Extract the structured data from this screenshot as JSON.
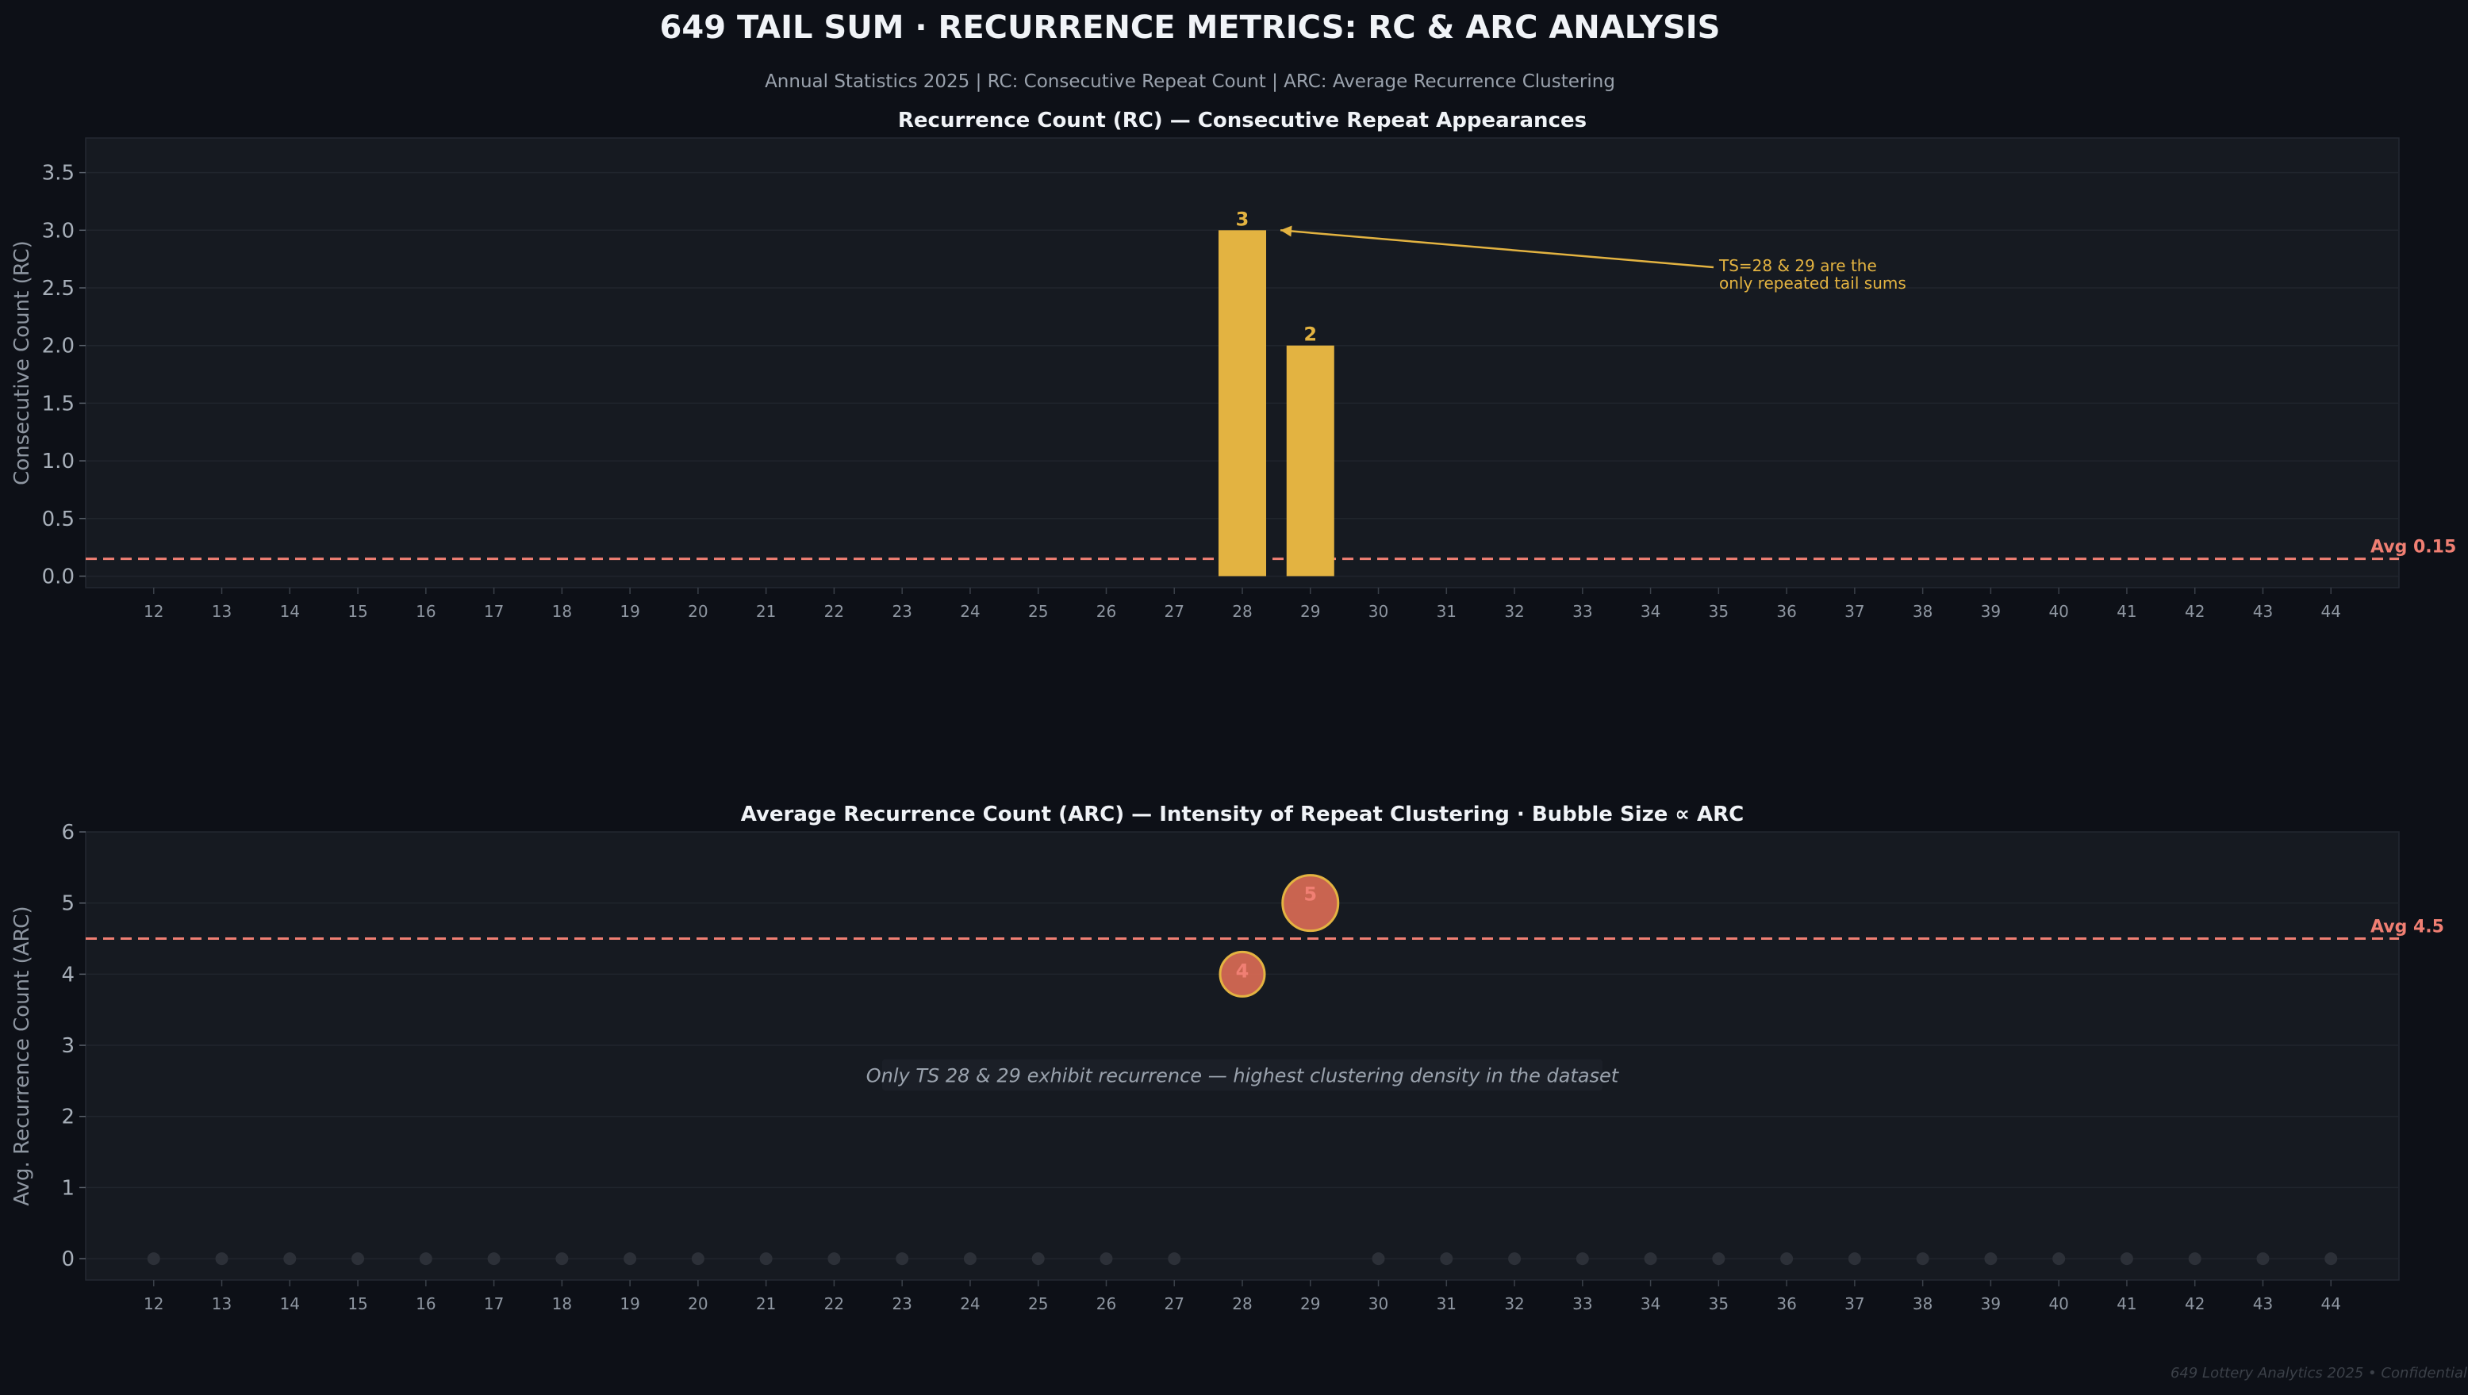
{
  "header": {
    "title": "649 TAIL SUM  ·  RECURRENCE METRICS: RC & ARC ANALYSIS",
    "subtitle": "Annual Statistics 2025  |  RC: Consecutive Repeat Count  |  ARC: Average Recurrence Clustering"
  },
  "footer": "649 Lottery Analytics 2025 • Confidential",
  "colors": {
    "background": "#0d1017",
    "panel": "#161a21",
    "bar": "#e3b341",
    "avg_line": "#f07f73",
    "bubble_fill": "#d96a55",
    "bubble_edge": "#e3b341",
    "zero_dot": "#2c3038"
  },
  "chart_data": [
    {
      "type": "bar",
      "title": "Recurrence Count (RC) — Consecutive Repeat Appearances",
      "ylabel": "Consecutive Count (RC)",
      "xlabel": "",
      "categories": [
        12,
        13,
        14,
        15,
        16,
        17,
        18,
        19,
        20,
        21,
        22,
        23,
        24,
        25,
        26,
        27,
        28,
        29,
        30,
        31,
        32,
        33,
        34,
        35,
        36,
        37,
        38,
        39,
        40,
        41,
        42,
        43,
        44
      ],
      "values": [
        0,
        0,
        0,
        0,
        0,
        0,
        0,
        0,
        0,
        0,
        0,
        0,
        0,
        0,
        0,
        0,
        3,
        2,
        0,
        0,
        0,
        0,
        0,
        0,
        0,
        0,
        0,
        0,
        0,
        0,
        0,
        0,
        0
      ],
      "ylim": [
        -0.1,
        3.8
      ],
      "yticks": [
        0.0,
        0.5,
        1.0,
        1.5,
        2.0,
        2.5,
        3.0,
        3.5
      ],
      "data_labels": [
        {
          "x": 28,
          "text": "3"
        },
        {
          "x": 29,
          "text": "2"
        }
      ],
      "average": {
        "value": 0.15,
        "label": "Avg 0.15"
      },
      "annotation": {
        "lines": [
          "TS=28 & 29 are the",
          "only repeated tail sums"
        ],
        "points_to_x": 28,
        "points_to_y": 3.0
      },
      "grid": true
    },
    {
      "type": "scatter",
      "title": "Average Recurrence Count (ARC) — Intensity of Repeat Clustering  ·  Bubble Size ∝ ARC",
      "ylabel": "Avg. Recurrence Count (ARC)",
      "xlabel": "",
      "categories": [
        12,
        13,
        14,
        15,
        16,
        17,
        18,
        19,
        20,
        21,
        22,
        23,
        24,
        25,
        26,
        27,
        28,
        29,
        30,
        31,
        32,
        33,
        34,
        35,
        36,
        37,
        38,
        39,
        40,
        41,
        42,
        43,
        44
      ],
      "values": [
        0,
        0,
        0,
        0,
        0,
        0,
        0,
        0,
        0,
        0,
        0,
        0,
        0,
        0,
        0,
        0,
        4,
        5,
        0,
        0,
        0,
        0,
        0,
        0,
        0,
        0,
        0,
        0,
        0,
        0,
        0,
        0,
        0
      ],
      "ylim": [
        -0.3,
        6
      ],
      "yticks": [
        0,
        1,
        2,
        3,
        4,
        5,
        6
      ],
      "data_labels": [
        {
          "x": 28,
          "text": "4"
        },
        {
          "x": 29,
          "text": "5"
        }
      ],
      "average": {
        "value": 4.5,
        "label": "Avg 4.5"
      },
      "note": "Only TS 28 & 29 exhibit recurrence — highest clustering density in the dataset",
      "grid": true
    }
  ]
}
